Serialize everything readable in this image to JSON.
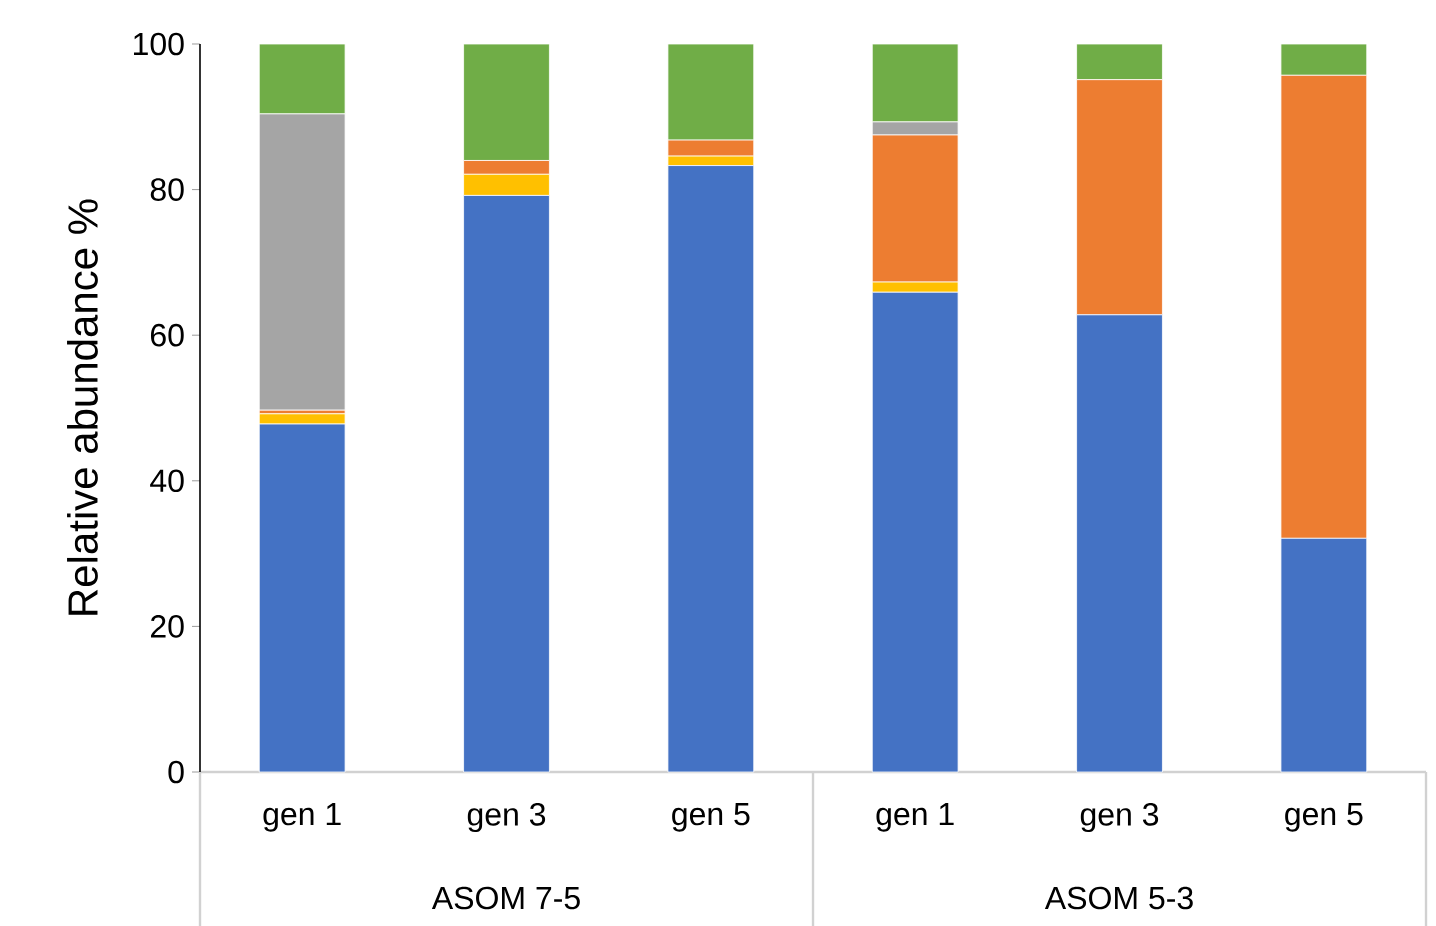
{
  "chart_data": {
    "type": "bar",
    "stacked": true,
    "ylabel": "Relative abundance %",
    "categories": [
      "gen 1",
      "gen 3",
      "gen 5",
      "gen 1",
      "gen 3",
      "gen 5"
    ],
    "annotations": [
      "ASOM 7-5",
      "ASOM 5-3"
    ],
    "ylim": [
      0,
      100
    ],
    "yticks": [
      0,
      20,
      40,
      60,
      80,
      100
    ],
    "series": [
      {
        "color": "#4472c4",
        "values": [
          47.8,
          79.2,
          83.3,
          65.9,
          62.8,
          32.1
        ]
      },
      {
        "color": "#ffc000",
        "values": [
          1.4,
          2.9,
          1.3,
          1.4,
          0,
          0
        ]
      },
      {
        "color": "#ed7d31",
        "values": [
          0.5,
          1.9,
          2.2,
          20.2,
          32.3,
          63.6
        ]
      },
      {
        "color": "#a5a5a5",
        "values": [
          40.7,
          0,
          0,
          1.8,
          0,
          0
        ]
      },
      {
        "color": "#70ad47",
        "values": [
          9.6,
          16.0,
          13.2,
          10.7,
          4.9,
          4.3
        ]
      }
    ]
  }
}
